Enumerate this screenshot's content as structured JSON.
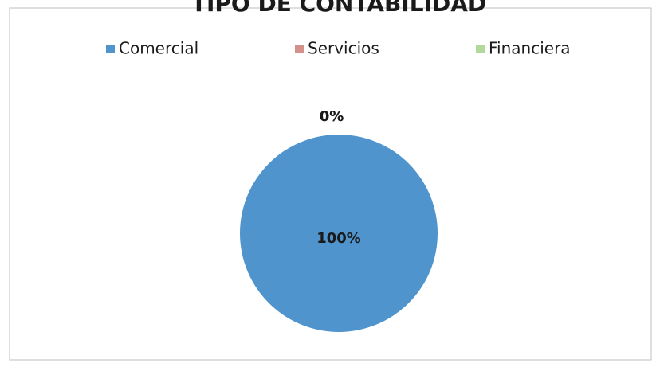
{
  "chart_data": {
    "type": "pie",
    "title": "TIPO DE CONTABILIDAD",
    "categories": [
      "Comercial",
      "Servicios",
      "Financiera"
    ],
    "values": [
      100,
      0,
      0
    ],
    "value_labels": [
      "100%",
      "0%",
      "0%"
    ],
    "colors": [
      "#4f94cd",
      "#d4918c",
      "#b3d89b"
    ],
    "legend": "top"
  }
}
